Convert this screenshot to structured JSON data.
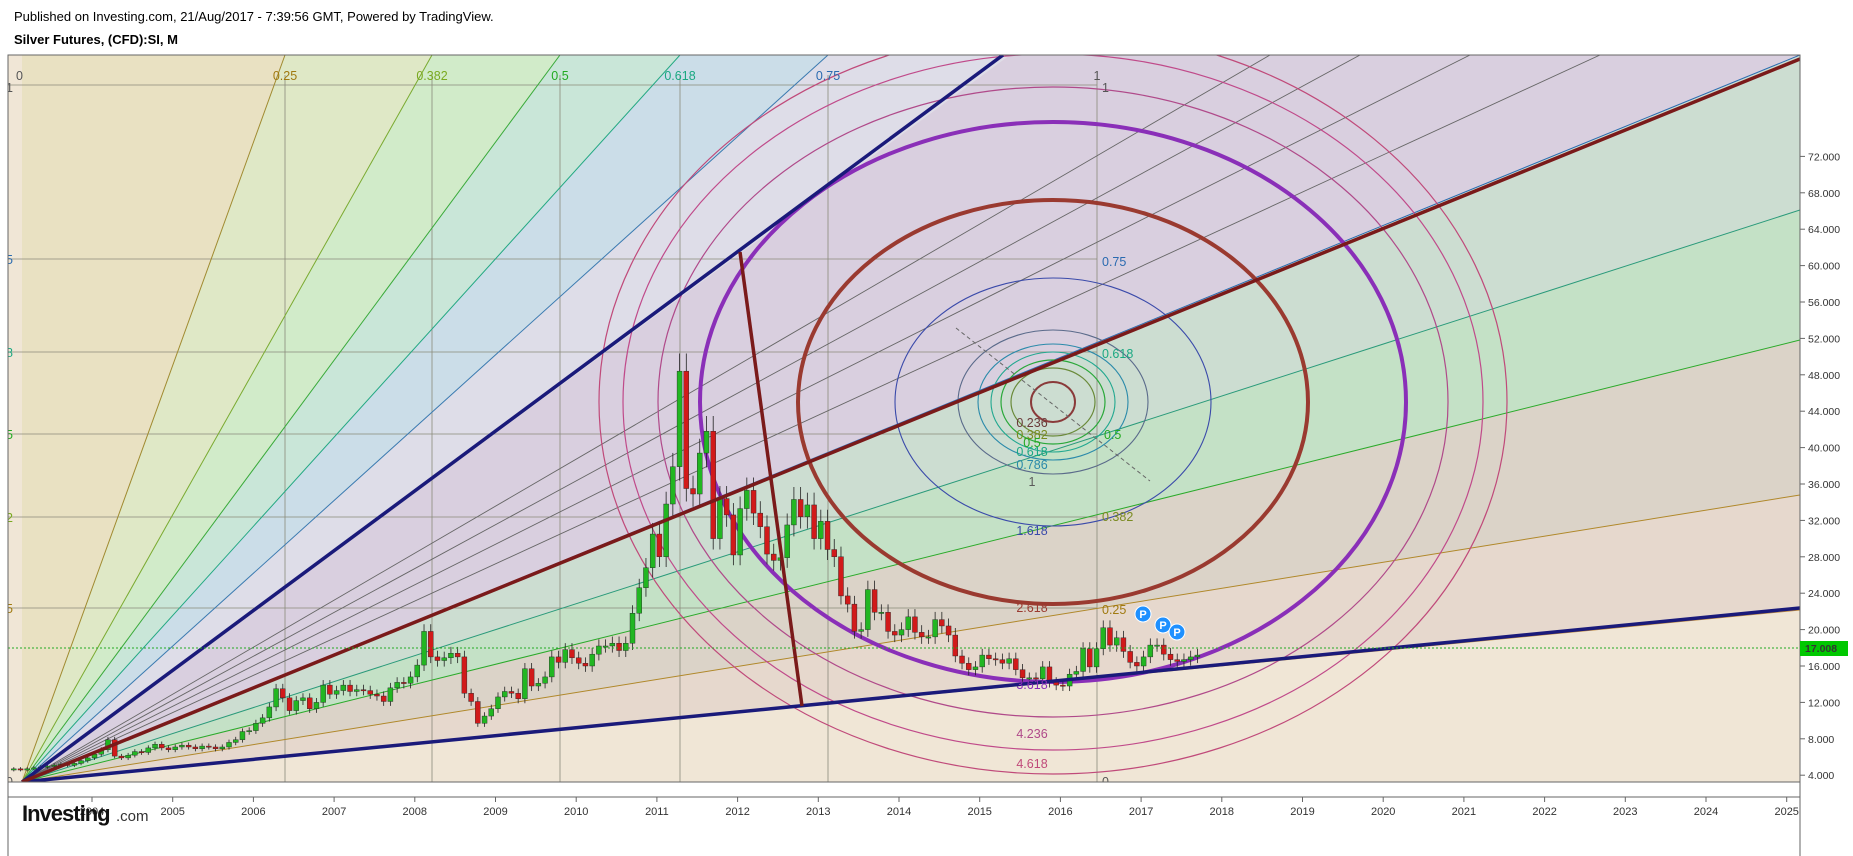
{
  "header": {
    "published": "Published on Investing.com, 21/Aug/2017 - 7:39:56 GMT, Powered by TradingView.",
    "symbol": "Silver Futures, (CFD):SI, M"
  },
  "logo": {
    "main": "Investing",
    "suffix": ".com"
  },
  "colors": {
    "bull": "#22b622",
    "bear": "#d11a1a",
    "navy": "#1a1a7a",
    "maroon": "#7a1a1a",
    "purple": "#8a2fb8",
    "price_tag": "#00c800"
  },
  "chart_data": {
    "type": "candlestick",
    "timeframe": "M",
    "x_ticks": [
      "2004",
      "2005",
      "2006",
      "2007",
      "2008",
      "2009",
      "2010",
      "2011",
      "2012",
      "2013",
      "2014",
      "2015",
      "2016",
      "2017",
      "2018",
      "2019",
      "2020",
      "2021",
      "2022",
      "2023",
      "2024",
      "2025"
    ],
    "y_ticks": [
      "4.000",
      "8.000",
      "12.000",
      "16.000",
      "20.000",
      "24.000",
      "28.000",
      "32.000",
      "36.000",
      "40.000",
      "44.000",
      "48.000",
      "52.000",
      "56.000",
      "60.000",
      "64.000",
      "68.000",
      "72.000"
    ],
    "ylim": [
      4,
      72
    ],
    "last_price": "17.008",
    "candles_by_year": [
      {
        "year": 2003,
        "o": [
          4.6,
          4.7,
          4.6,
          4.7,
          4.8,
          4.9,
          5.0,
          5.1,
          5.2,
          5.1,
          5.3,
          5.6
        ]
      },
      {
        "year": 2004,
        "o": [
          5.9,
          6.3,
          6.8,
          7.9,
          6.1,
          5.9,
          6.2,
          6.6,
          6.5,
          7.0,
          7.4,
          7.0
        ]
      },
      {
        "year": 2005,
        "o": [
          6.8,
          7.1,
          7.3,
          7.1,
          6.9,
          7.2,
          7.1,
          6.9,
          7.1,
          7.6,
          7.9,
          8.8
        ]
      },
      {
        "year": 2006,
        "o": [
          8.9,
          9.7,
          10.3,
          11.5,
          13.5,
          12.5,
          11.1,
          12.2,
          12.5,
          11.3,
          12.0,
          13.9
        ]
      },
      {
        "year": 2007,
        "o": [
          12.9,
          13.3,
          13.9,
          13.2,
          13.4,
          13.3,
          12.9,
          12.7,
          12.1,
          13.6,
          14.2,
          14.1
        ]
      },
      {
        "year": 2008,
        "o": [
          14.8,
          16.1,
          19.8,
          17.0,
          16.6,
          16.9,
          17.4,
          17.0,
          13.0,
          12.1,
          9.7,
          10.5
        ]
      },
      {
        "year": 2009,
        "o": [
          11.3,
          12.6,
          13.2,
          13.0,
          12.4,
          15.7,
          13.8,
          14.1,
          14.8,
          17.0,
          16.4,
          17.8
        ]
      },
      {
        "year": 2010,
        "o": [
          16.9,
          16.3,
          16.0,
          17.3,
          18.2,
          18.2,
          18.5,
          17.7,
          18.5,
          21.8,
          24.6,
          26.8
        ]
      },
      {
        "year": 2011,
        "o": [
          30.5,
          28.0,
          33.8,
          37.9,
          48.4,
          35.5,
          34.9,
          39.4,
          41.8,
          30.0,
          34.4,
          32.6
        ]
      },
      {
        "year": 2012,
        "o": [
          28.2,
          33.3,
          35.3,
          32.8,
          31.3,
          28.3,
          27.6,
          27.9,
          31.5,
          34.3,
          32.4,
          33.7
        ]
      },
      {
        "year": 2013,
        "o": [
          30.0,
          31.9,
          28.8,
          28.0,
          23.7,
          22.8,
          19.8,
          20.0,
          24.4,
          21.9,
          21.9,
          19.8
        ]
      },
      {
        "year": 2014,
        "o": [
          19.4,
          20.0,
          21.4,
          19.7,
          19.2,
          19.2,
          21.1,
          20.4,
          19.4,
          17.1,
          16.3,
          15.6
        ]
      },
      {
        "year": 2015,
        "o": [
          15.9,
          17.2,
          16.8,
          16.7,
          16.3,
          16.8,
          15.6,
          14.7,
          14.7,
          14.6,
          15.9,
          14.2
        ]
      },
      {
        "year": 2016,
        "o": [
          13.9,
          13.8,
          15.1,
          15.4,
          17.9,
          15.9,
          17.9,
          20.2,
          18.3,
          19.1,
          17.6,
          16.4
        ]
      },
      {
        "year": 2017,
        "o": [
          16.0,
          17.0,
          18.3,
          18.3,
          17.3,
          16.7,
          16.5,
          16.7,
          17.0
        ]
      }
    ],
    "fib_fan_labels": [
      "0",
      "0.25",
      "0.382",
      "0.5",
      "0.618",
      "0.75",
      "1"
    ],
    "fib_circle_labels": [
      "0.236",
      "0.382",
      "0.5",
      "0.618",
      "0.786",
      "1",
      "1.618",
      "2.618",
      "3.618",
      "4.236",
      "4.618"
    ],
    "fib_fan_upper_labels": [
      "0.75",
      "0.618",
      "0.5",
      "0.382",
      "0.25"
    ],
    "left_edge_labels": [
      "1",
      "5",
      "8",
      "5",
      "2",
      "5",
      "0"
    ],
    "markers": [
      "P",
      "P",
      "P"
    ]
  }
}
